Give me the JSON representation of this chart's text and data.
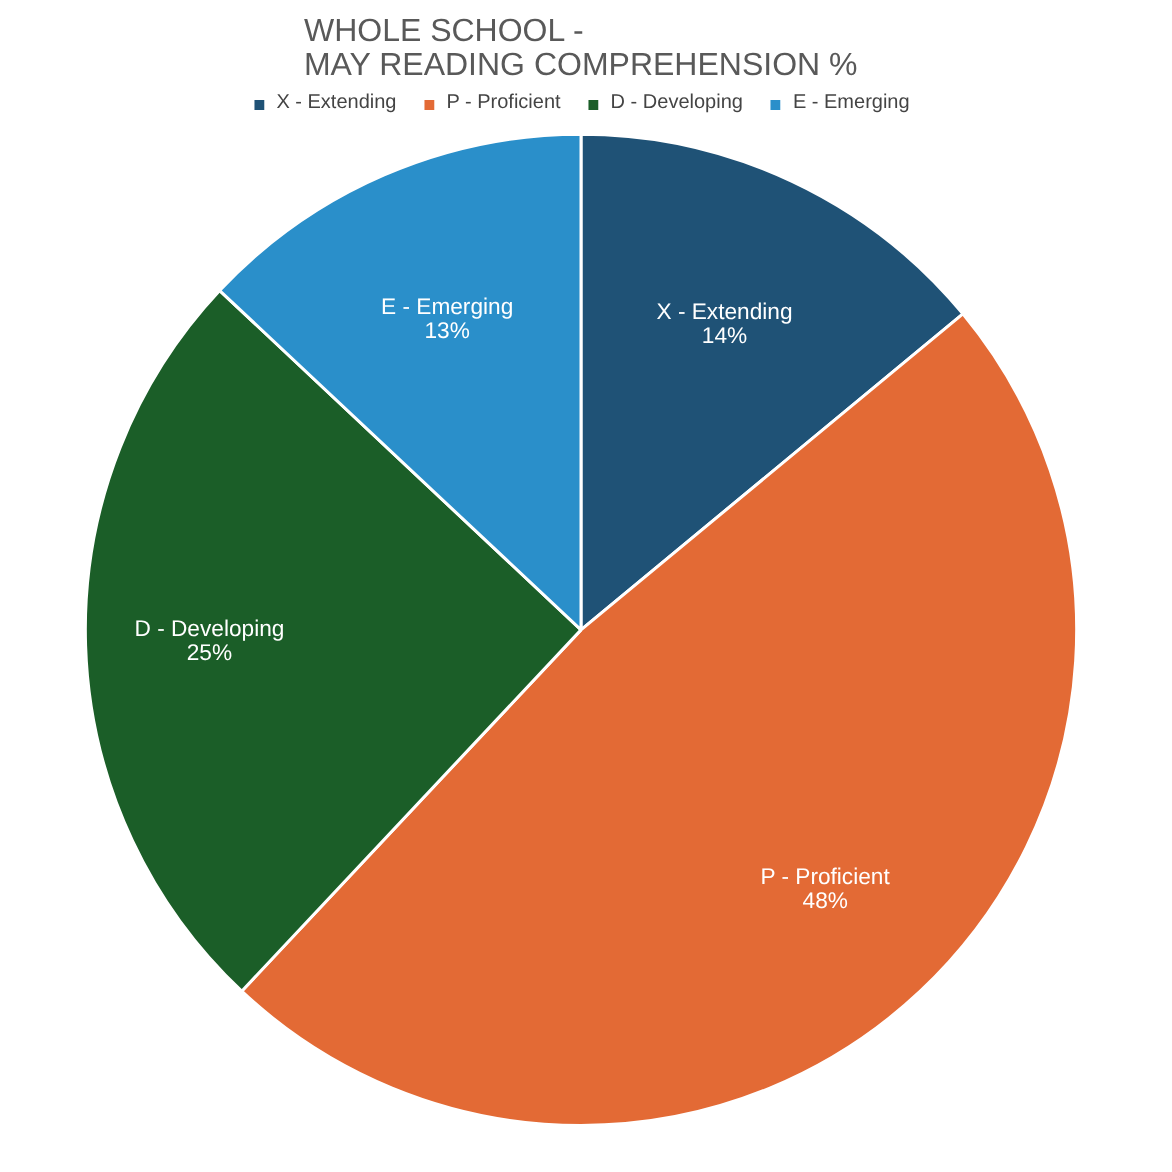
{
  "chart_data": {
    "type": "pie",
    "title": "WHOLE SCHOOL -\nMAY READING COMPREHENSION %",
    "categories": [
      "X - Extending",
      "P - Proficient",
      "D - Developing",
      "E - Emerging"
    ],
    "values": [
      14,
      48,
      25,
      13
    ],
    "colors": [
      "#1f5276",
      "#e36a35",
      "#1b5e28",
      "#2a8fca"
    ],
    "value_labels": [
      "14%",
      "48%",
      "25%",
      "13%"
    ],
    "legend": "top"
  }
}
